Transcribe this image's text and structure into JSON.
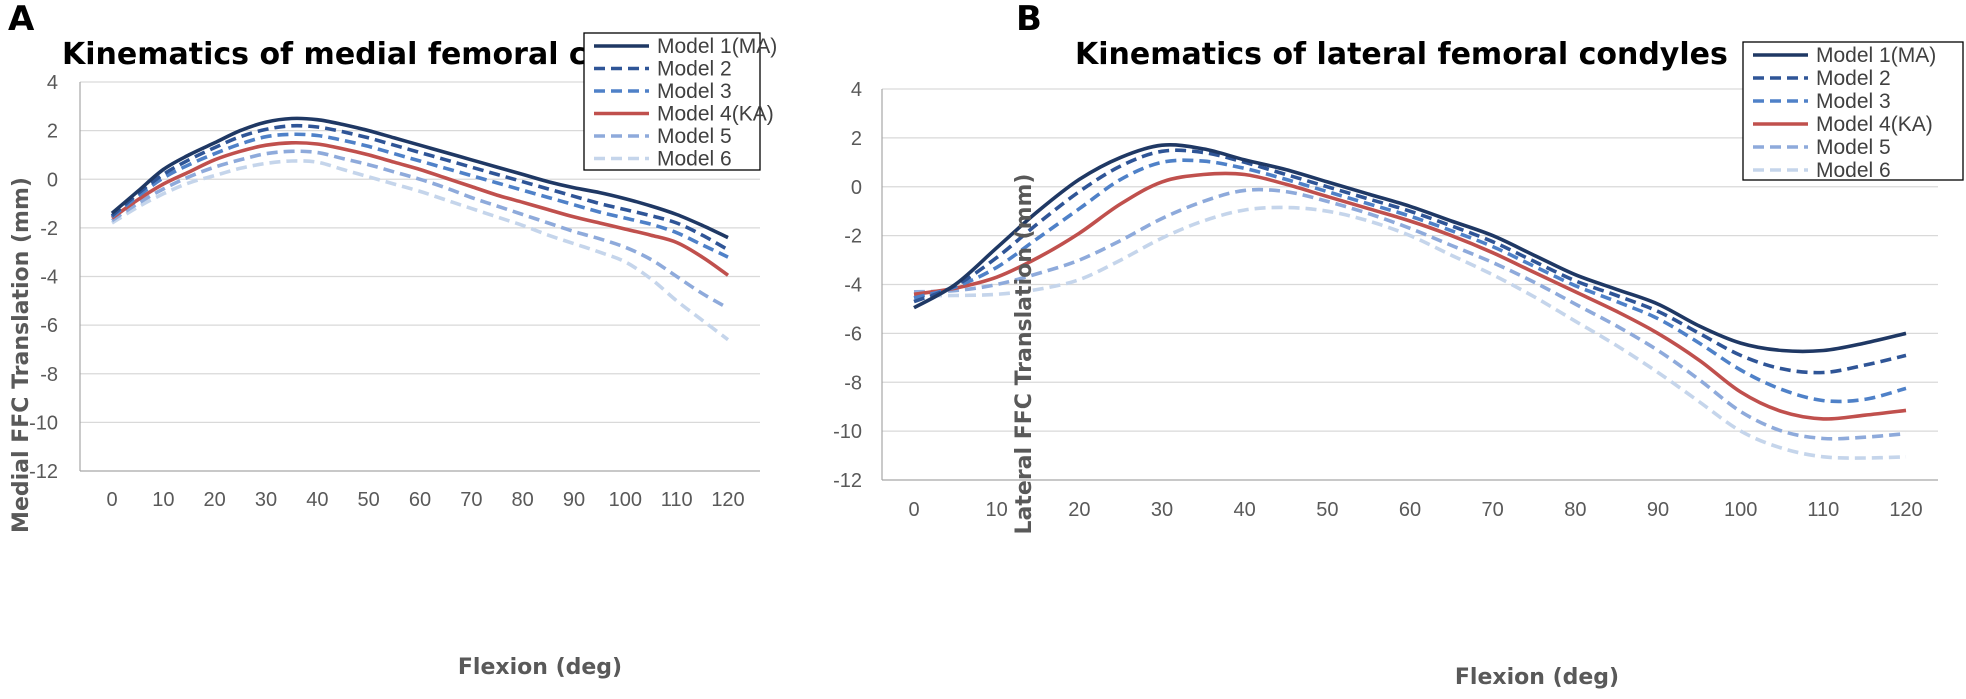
{
  "chart_data": [
    {
      "type": "line",
      "panel_label": "A",
      "title": "Kinematics of medial femoral condyles",
      "xlabel": "Flexion (deg)",
      "ylabel": "Medial FFC Translation (mm)",
      "xlim": [
        0,
        120
      ],
      "ylim": [
        -12,
        4
      ],
      "xticks": [
        0,
        10,
        20,
        30,
        40,
        50,
        60,
        70,
        80,
        90,
        100,
        110,
        120
      ],
      "yticks": [
        4,
        2,
        0,
        -2,
        -4,
        -6,
        -8,
        -10,
        -12
      ],
      "grid": "horizontal",
      "legend_position": "top-right",
      "x": [
        0,
        5,
        10,
        15,
        20,
        25,
        30,
        35,
        40,
        45,
        50,
        55,
        60,
        65,
        70,
        75,
        80,
        85,
        90,
        95,
        100,
        105,
        110,
        115,
        120
      ],
      "series": [
        {
          "name": "Model 1(MA)",
          "color": "#1f3864",
          "style": "solid",
          "values": [
            -1.4,
            -0.5,
            0.4,
            1.0,
            1.5,
            2.0,
            2.35,
            2.5,
            2.45,
            2.25,
            2.0,
            1.7,
            1.4,
            1.1,
            0.8,
            0.5,
            0.2,
            -0.1,
            -0.35,
            -0.55,
            -0.8,
            -1.1,
            -1.45,
            -1.9,
            -2.4
          ]
        },
        {
          "name": "Model 2",
          "color": "#2f5597",
          "style": "dashed",
          "values": [
            -1.5,
            -0.6,
            0.2,
            0.8,
            1.3,
            1.75,
            2.05,
            2.2,
            2.15,
            1.95,
            1.7,
            1.4,
            1.1,
            0.8,
            0.5,
            0.2,
            -0.1,
            -0.4,
            -0.7,
            -1.0,
            -1.25,
            -1.5,
            -1.8,
            -2.3,
            -2.9
          ]
        },
        {
          "name": "Model 3",
          "color": "#4f81c8",
          "style": "dashed",
          "values": [
            -1.55,
            -0.7,
            0.05,
            0.6,
            1.05,
            1.45,
            1.75,
            1.85,
            1.8,
            1.6,
            1.35,
            1.05,
            0.75,
            0.45,
            0.15,
            -0.15,
            -0.45,
            -0.75,
            -1.05,
            -1.35,
            -1.6,
            -1.85,
            -2.2,
            -2.7,
            -3.2
          ]
        },
        {
          "name": "Model 4(KA)",
          "color": "#c0504d",
          "style": "solid",
          "values": [
            -1.6,
            -0.85,
            -0.2,
            0.3,
            0.8,
            1.15,
            1.4,
            1.5,
            1.45,
            1.25,
            1.0,
            0.7,
            0.4,
            0.05,
            -0.3,
            -0.65,
            -0.95,
            -1.25,
            -1.55,
            -1.8,
            -2.05,
            -2.3,
            -2.6,
            -3.2,
            -3.95
          ]
        },
        {
          "name": "Model 5",
          "color": "#8eaadb",
          "style": "dashed",
          "values": [
            -1.7,
            -1.0,
            -0.4,
            0.1,
            0.5,
            0.8,
            1.05,
            1.15,
            1.1,
            0.85,
            0.6,
            0.3,
            0.0,
            -0.35,
            -0.75,
            -1.1,
            -1.45,
            -1.8,
            -2.15,
            -2.45,
            -2.8,
            -3.3,
            -4.0,
            -4.7,
            -5.3
          ]
        },
        {
          "name": "Model 6",
          "color": "#c5d5eb",
          "style": "dashed",
          "values": [
            -1.8,
            -1.15,
            -0.6,
            -0.15,
            0.15,
            0.45,
            0.65,
            0.75,
            0.7,
            0.4,
            0.1,
            -0.2,
            -0.5,
            -0.85,
            -1.2,
            -1.55,
            -1.9,
            -2.3,
            -2.65,
            -3.0,
            -3.4,
            -4.1,
            -5.0,
            -5.8,
            -6.6
          ]
        }
      ]
    },
    {
      "type": "line",
      "panel_label": "B",
      "title": "Kinematics of lateral femoral condyles",
      "xlabel": "Flexion (deg)",
      "ylabel": "Lateral FFC Translation (mm)",
      "xlim": [
        0,
        120
      ],
      "ylim": [
        -12,
        4
      ],
      "xticks": [
        0,
        10,
        20,
        30,
        40,
        50,
        60,
        70,
        80,
        90,
        100,
        110,
        120
      ],
      "yticks": [
        4,
        2,
        0,
        -2,
        -4,
        -6,
        -8,
        -10,
        -12
      ],
      "grid": "horizontal",
      "legend_position": "top-right",
      "x": [
        0,
        5,
        10,
        15,
        20,
        25,
        30,
        35,
        40,
        45,
        50,
        55,
        60,
        65,
        70,
        75,
        80,
        85,
        90,
        95,
        100,
        105,
        110,
        115,
        120
      ],
      "series": [
        {
          "name": "Model 1(MA)",
          "color": "#1f3864",
          "style": "solid",
          "values": [
            -4.95,
            -4.0,
            -2.5,
            -1.0,
            0.3,
            1.2,
            1.7,
            1.55,
            1.1,
            0.7,
            0.2,
            -0.3,
            -0.8,
            -1.4,
            -2.0,
            -2.8,
            -3.6,
            -4.2,
            -4.8,
            -5.7,
            -6.4,
            -6.7,
            -6.7,
            -6.4,
            -6.0
          ]
        },
        {
          "name": "Model 2",
          "color": "#2f5597",
          "style": "dashed",
          "values": [
            -4.7,
            -4.05,
            -2.9,
            -1.5,
            -0.2,
            0.85,
            1.45,
            1.4,
            1.0,
            0.5,
            0.0,
            -0.5,
            -1.0,
            -1.6,
            -2.25,
            -3.05,
            -3.85,
            -4.45,
            -5.1,
            -6.0,
            -6.9,
            -7.45,
            -7.6,
            -7.3,
            -6.9
          ]
        },
        {
          "name": "Model 3",
          "color": "#4f81c8",
          "style": "dashed",
          "values": [
            -4.55,
            -4.1,
            -3.3,
            -2.1,
            -0.9,
            0.3,
            1.0,
            1.05,
            0.75,
            0.3,
            -0.2,
            -0.7,
            -1.2,
            -1.8,
            -2.45,
            -3.25,
            -4.05,
            -4.7,
            -5.4,
            -6.4,
            -7.5,
            -8.3,
            -8.75,
            -8.7,
            -8.25
          ]
        },
        {
          "name": "Model 4(KA)",
          "color": "#c0504d",
          "style": "solid",
          "values": [
            -4.4,
            -4.15,
            -3.7,
            -2.9,
            -1.9,
            -0.7,
            0.2,
            0.5,
            0.5,
            0.1,
            -0.4,
            -0.9,
            -1.4,
            -2.0,
            -2.7,
            -3.5,
            -4.3,
            -5.1,
            -6.0,
            -7.1,
            -8.4,
            -9.2,
            -9.5,
            -9.35,
            -9.15
          ]
        },
        {
          "name": "Model 5",
          "color": "#8eaadb",
          "style": "dashed",
          "values": [
            -4.3,
            -4.25,
            -4.0,
            -3.55,
            -3.0,
            -2.2,
            -1.3,
            -0.6,
            -0.15,
            -0.2,
            -0.6,
            -1.1,
            -1.7,
            -2.4,
            -3.1,
            -3.9,
            -4.8,
            -5.7,
            -6.7,
            -7.9,
            -9.2,
            -10.0,
            -10.3,
            -10.25,
            -10.1
          ]
        },
        {
          "name": "Model 6",
          "color": "#c5d5eb",
          "style": "dashed",
          "values": [
            -4.45,
            -4.45,
            -4.4,
            -4.2,
            -3.8,
            -3.0,
            -2.1,
            -1.4,
            -0.95,
            -0.85,
            -1.0,
            -1.4,
            -2.0,
            -2.8,
            -3.6,
            -4.5,
            -5.5,
            -6.5,
            -7.6,
            -8.8,
            -10.0,
            -10.7,
            -11.05,
            -11.1,
            -11.05
          ]
        }
      ]
    }
  ]
}
